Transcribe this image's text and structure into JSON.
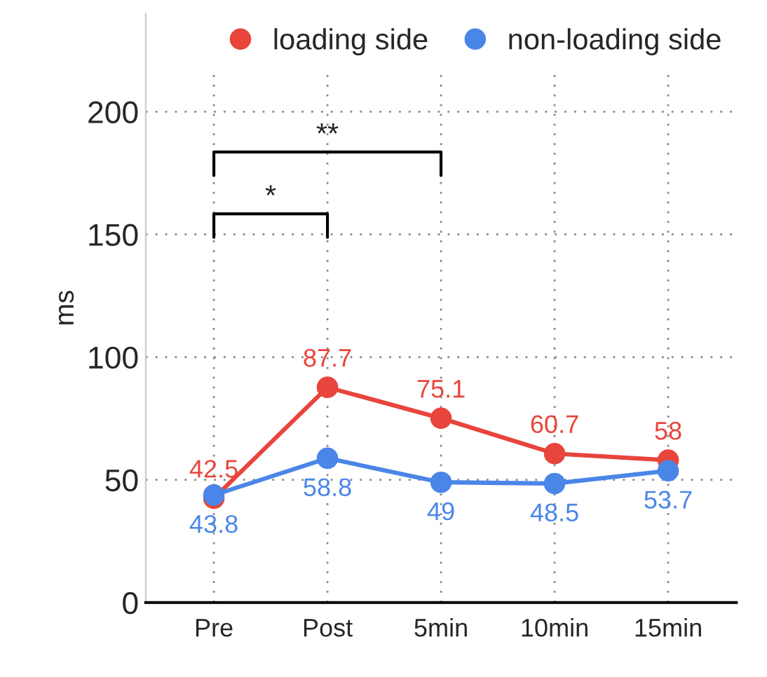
{
  "chart_data": {
    "type": "line",
    "ylabel": "ms",
    "categories": [
      "Pre",
      "Post",
      "5min",
      "10min",
      "15min"
    ],
    "series": [
      {
        "name": "loading side",
        "color": "#e8453c",
        "values": [
          42.5,
          87.7,
          75.1,
          60.7,
          58
        ]
      },
      {
        "name": "non-loading side",
        "color": "#4a86e8",
        "values": [
          43.8,
          58.8,
          49,
          48.5,
          53.7
        ]
      }
    ],
    "ylim": [
      0,
      240
    ],
    "yticks": [
      0,
      50,
      100,
      150,
      200
    ],
    "grid": true,
    "legend": "top right",
    "marker": "circle",
    "line_style": "solid",
    "data_labels": true,
    "annotations": [
      "*",
      "**"
    ]
  }
}
